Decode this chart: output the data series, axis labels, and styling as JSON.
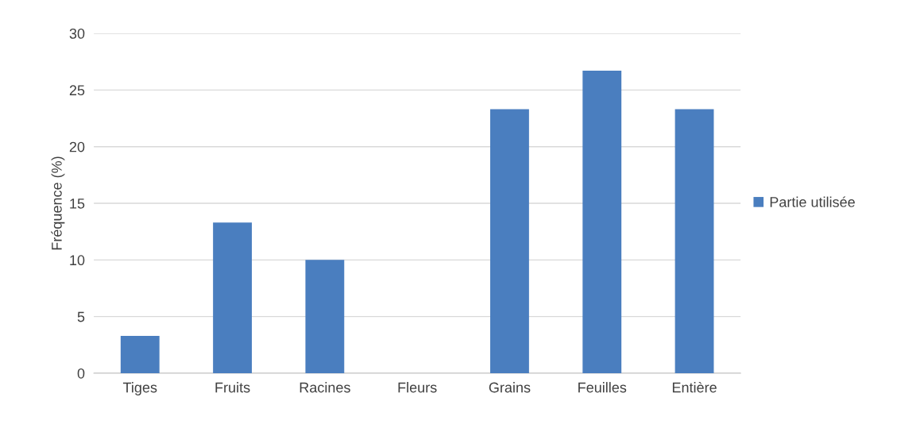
{
  "chart_data": {
    "type": "bar",
    "ylabel": "Fréquence (%)",
    "categories": [
      "Tiges",
      "Fruits",
      "Racines",
      "Fleurs",
      "Grains",
      "Feuilles",
      "Entière"
    ],
    "series": [
      {
        "name": "Partie utilisée",
        "color": "#4a7ebf",
        "values": [
          3.3,
          13.3,
          10,
          0,
          23.3,
          26.7,
          23.3
        ]
      }
    ],
    "ylim": [
      0,
      30
    ],
    "yticks": [
      0,
      5,
      10,
      15,
      20,
      25,
      30
    ],
    "grid": "y",
    "legend": "right"
  }
}
